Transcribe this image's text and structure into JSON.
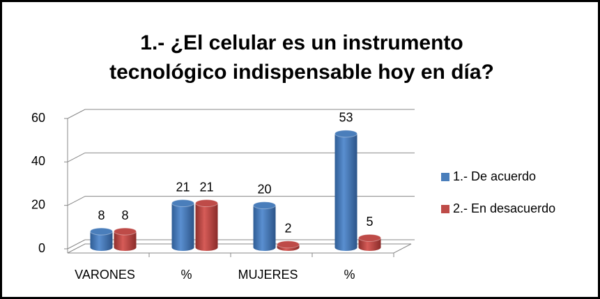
{
  "chart_data": {
    "type": "bar3d",
    "title": "1.- ¿El celular es un instrumento tecnológico indispensable hoy en día?",
    "categories": [
      "VARONES",
      "%",
      "MUJERES",
      "%"
    ],
    "series": [
      {
        "name": "1.- De acuerdo",
        "color": "#4a7ebb",
        "values": [
          8,
          21,
          20,
          53
        ]
      },
      {
        "name": "2.- En desacuerdo",
        "color": "#be4b48",
        "values": [
          8,
          21,
          2,
          5
        ]
      }
    ],
    "ylim": [
      0,
      60
    ],
    "yticks": [
      0,
      20,
      40,
      60
    ],
    "grid": true,
    "legend": "right"
  }
}
